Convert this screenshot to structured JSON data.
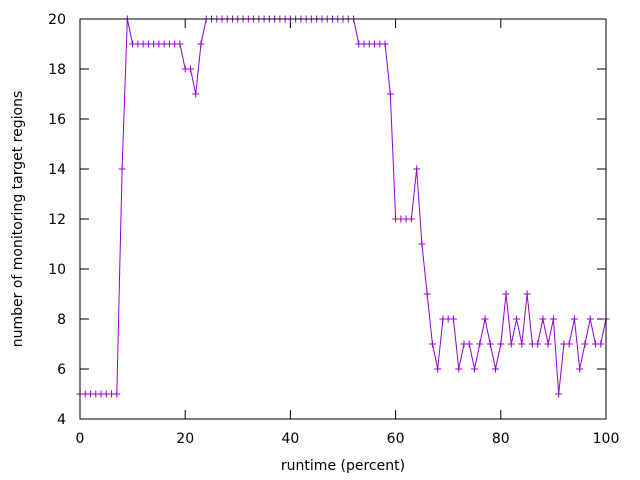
{
  "chart_data": {
    "type": "line",
    "title": "",
    "xlabel": "runtime (percent)",
    "ylabel": "number of monitoring target regions",
    "xlim": [
      0,
      100
    ],
    "ylim": [
      4,
      20
    ],
    "xticks": [
      0,
      20,
      40,
      60,
      80,
      100
    ],
    "yticks": [
      4,
      6,
      8,
      10,
      12,
      14,
      16,
      18,
      20
    ],
    "grid": false,
    "legend": "none",
    "marker": "plus",
    "series_color": "#9400d3",
    "series": [
      {
        "x": [
          0,
          1,
          2,
          3,
          4,
          5,
          6,
          7,
          8,
          9,
          10,
          11,
          12,
          13,
          14,
          15,
          16,
          17,
          18,
          19,
          20,
          21,
          22,
          23,
          24,
          25,
          26,
          27,
          28,
          29,
          30,
          31,
          32,
          33,
          34,
          35,
          36,
          37,
          38,
          39,
          40,
          41,
          42,
          43,
          44,
          45,
          46,
          47,
          48,
          49,
          50,
          51,
          52,
          53,
          54,
          55,
          56,
          57,
          58,
          59,
          60,
          61,
          62,
          63,
          64,
          65,
          66,
          67,
          68,
          69,
          70,
          71,
          72,
          73,
          74,
          75,
          76,
          77,
          78,
          79,
          80,
          81,
          82,
          83,
          84,
          85,
          86,
          87,
          88,
          89,
          90,
          91,
          92,
          93,
          94,
          95,
          96,
          97,
          98,
          99,
          100
        ],
        "values": [
          5,
          5,
          5,
          5,
          5,
          5,
          5,
          5,
          14,
          20,
          19,
          19,
          19,
          19,
          19,
          19,
          19,
          19,
          19,
          19,
          18,
          18,
          17,
          19,
          20,
          20,
          20,
          20,
          20,
          20,
          20,
          20,
          20,
          20,
          20,
          20,
          20,
          20,
          20,
          20,
          20,
          20,
          20,
          20,
          20,
          20,
          20,
          20,
          20,
          20,
          20,
          20,
          20,
          19,
          19,
          19,
          19,
          19,
          19,
          17,
          12,
          12,
          12,
          12,
          14,
          11,
          9,
          7,
          6,
          8,
          8,
          8,
          6,
          7,
          7,
          6,
          7,
          8,
          7,
          6,
          7,
          9,
          7,
          8,
          7,
          9,
          7,
          7,
          8,
          7,
          8,
          5,
          7,
          7,
          8,
          6,
          7,
          8,
          7,
          7,
          8
        ]
      }
    ]
  }
}
